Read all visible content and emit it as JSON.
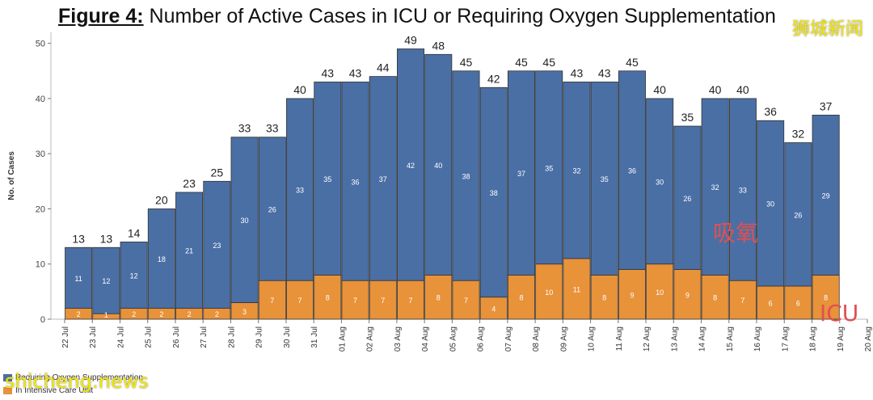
{
  "figure_label": "Figure 4:",
  "figure_title": "Number of Active Cases in ICU or Requiring Oxygen Supplementation",
  "watermarks": {
    "top_right": "狮城新闻",
    "bottom_left": "shicheng.news"
  },
  "colors": {
    "oxygen": "#4a6fa5",
    "icu": "#e8923a"
  },
  "chart_data": {
    "type": "bar",
    "stacked": true,
    "title": "Number of Active Cases in ICU or Requiring Oxygen Supplementation",
    "ylabel": "No. of Cases",
    "ylim": [
      0,
      52
    ],
    "yticks": [
      0,
      10,
      20,
      30,
      40,
      50
    ],
    "xticks": [
      "22 Jul",
      "23 Jul",
      "24 Jul",
      "25 Jul",
      "26 Jul",
      "27 Jul",
      "28 Jul",
      "29 Jul",
      "30 Jul",
      "31 Jul",
      "01 Aug",
      "02 Aug",
      "03 Aug",
      "04 Aug",
      "05 Aug",
      "06 Aug",
      "07 Aug",
      "08 Aug",
      "09 Aug",
      "10 Aug",
      "11 Aug",
      "12 Aug",
      "13 Aug",
      "14 Aug",
      "15 Aug",
      "16 Aug",
      "17 Aug",
      "18 Aug",
      "19 Aug",
      "20 Aug"
    ],
    "categories": [
      "23 Jul",
      "24 Jul",
      "25 Jul",
      "26 Jul",
      "27 Jul",
      "28 Jul",
      "29 Jul",
      "30 Jul",
      "31 Jul",
      "01 Aug",
      "02 Aug",
      "03 Aug",
      "04 Aug",
      "05 Aug",
      "06 Aug",
      "07 Aug",
      "08 Aug",
      "09 Aug",
      "10 Aug",
      "11 Aug",
      "12 Aug",
      "13 Aug",
      "14 Aug",
      "15 Aug",
      "16 Aug",
      "17 Aug",
      "18 Aug",
      "19 Aug"
    ],
    "series": [
      {
        "name": "In Intensive Care Unit",
        "values": [
          2,
          1,
          2,
          2,
          2,
          2,
          3,
          7,
          7,
          8,
          7,
          7,
          7,
          8,
          7,
          4,
          8,
          10,
          11,
          8,
          9,
          10,
          9,
          8,
          7,
          6,
          6,
          8
        ]
      },
      {
        "name": "Requiring Oxygen Supplementation",
        "values": [
          11,
          12,
          12,
          18,
          21,
          23,
          30,
          26,
          33,
          35,
          36,
          37,
          42,
          40,
          38,
          38,
          37,
          35,
          32,
          35,
          36,
          30,
          26,
          32,
          33,
          30,
          26,
          29
        ]
      }
    ],
    "totals": [
      13,
      13,
      14,
      20,
      23,
      25,
      33,
      33,
      40,
      43,
      43,
      44,
      49,
      48,
      45,
      42,
      45,
      45,
      43,
      43,
      45,
      40,
      35,
      40,
      40,
      36,
      32,
      37
    ],
    "annotations": [
      "吸氧",
      "ICU"
    ],
    "legend": "bottom-left"
  }
}
